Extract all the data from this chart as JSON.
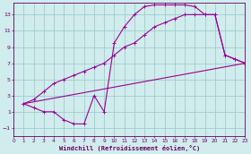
{
  "xlabel": "Windchill (Refroidissement éolien,°C)",
  "background_color": "#d0ecec",
  "grid_color": "#a0cccc",
  "line_color": "#990099",
  "xlim": [
    0,
    23
  ],
  "ylim": [
    -2,
    14.5
  ],
  "xticks": [
    0,
    1,
    2,
    3,
    4,
    5,
    6,
    7,
    8,
    9,
    10,
    11,
    12,
    13,
    14,
    15,
    16,
    17,
    18,
    19,
    20,
    21,
    22,
    23
  ],
  "yticks": [
    -1,
    1,
    3,
    5,
    7,
    9,
    11,
    13
  ],
  "curve1_x": [
    1,
    2,
    3,
    4,
    5,
    6,
    7,
    8,
    9,
    10,
    11,
    12,
    13,
    14,
    15,
    16,
    17,
    18,
    19,
    20,
    21,
    22,
    23
  ],
  "curve1_y": [
    2.0,
    2.5,
    3.5,
    4.5,
    5.0,
    5.5,
    6.0,
    6.5,
    7.0,
    8.0,
    9.0,
    9.5,
    10.5,
    11.5,
    12.0,
    12.5,
    13.0,
    13.0,
    13.0,
    13.0,
    8.0,
    7.5,
    7.0
  ],
  "curve2_x": [
    1,
    2,
    3,
    4,
    5,
    6,
    7,
    8,
    9,
    10,
    11,
    12,
    13,
    14,
    15,
    16,
    17,
    18,
    19,
    20,
    21,
    22,
    23
  ],
  "curve2_y": [
    2.0,
    1.5,
    1.0,
    1.0,
    0.0,
    -0.5,
    -0.5,
    3.0,
    1.0,
    9.5,
    11.5,
    13.0,
    14.0,
    14.2,
    14.2,
    14.2,
    14.2,
    14.0,
    13.0,
    13.0,
    8.0,
    7.5,
    7.0
  ],
  "line3_x": [
    1,
    23
  ],
  "line3_y": [
    2.0,
    7.0
  ],
  "marker_size": 3.0
}
